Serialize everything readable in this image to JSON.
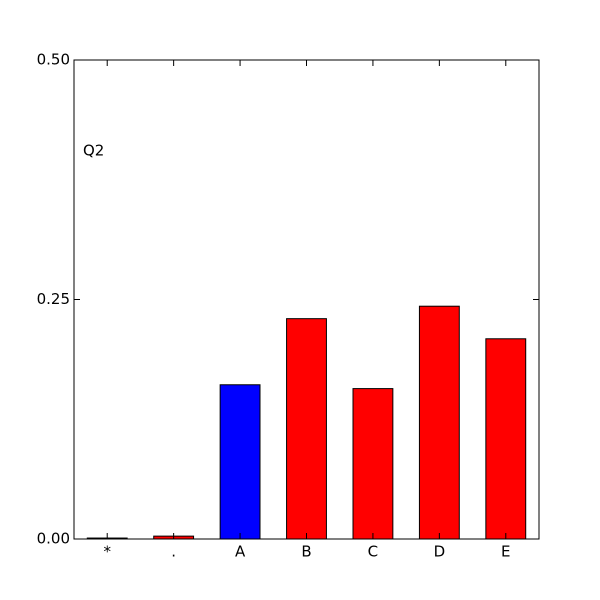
{
  "chart_data": {
    "type": "bar",
    "annotation": "Q2",
    "categories": [
      "*",
      ".",
      "A",
      "B",
      "C",
      "D",
      "E"
    ],
    "values": [
      0.001,
      0.003,
      0.161,
      0.23,
      0.157,
      0.243,
      0.209
    ],
    "colors": [
      "#ff0000",
      "#ff0000",
      "#0000ff",
      "#ff0000",
      "#ff0000",
      "#ff0000",
      "#ff0000"
    ],
    "ylim": [
      0,
      0.5
    ],
    "yticks": [
      {
        "value": 0,
        "label": "0.00"
      },
      {
        "value": 0.25,
        "label": "0.25"
      },
      {
        "value": 0.5,
        "label": "0.50"
      }
    ],
    "grid": false
  }
}
